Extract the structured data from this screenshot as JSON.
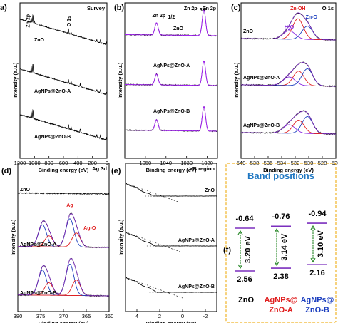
{
  "chart_data": [
    {
      "id": "a",
      "panel_label": "a)",
      "corner_label": "Survey",
      "type": "line",
      "xlabel": "Binding energy (eV)",
      "ylabel": "Intensity (a.u.)",
      "xlim": [
        1200,
        0
      ],
      "x_ticks": [
        1200,
        1000,
        800,
        600,
        400,
        200,
        0
      ],
      "annotations": [
        "Zn 2p",
        "O 1s"
      ],
      "series": [
        {
          "name": "ZnO",
          "background": [
            0.92,
            0.3
          ],
          "peaks": [
            {
              "x": 1045,
              "h": 0.12
            },
            {
              "x": 1022,
              "h": 0.2
            },
            {
              "x": 531,
              "h": 0.12
            },
            {
              "x": 1000,
              "h": 0.04
            },
            {
              "x": 495,
              "h": 0.05
            },
            {
              "x": 140,
              "h": 0.05
            },
            {
              "x": 90,
              "h": 0.07
            },
            {
              "x": 10,
              "h": 0.06
            }
          ]
        },
        {
          "name": "AgNPs@ZnO-A",
          "background": [
            0.92,
            0.3
          ],
          "peaks": [
            {
              "x": 1045,
              "h": 0.14
            },
            {
              "x": 1022,
              "h": 0.22
            },
            {
              "x": 531,
              "h": 0.1
            },
            {
              "x": 495,
              "h": 0.06
            },
            {
              "x": 368,
              "h": 0.08
            },
            {
              "x": 140,
              "h": 0.05
            },
            {
              "x": 90,
              "h": 0.07
            },
            {
              "x": 10,
              "h": 0.06
            }
          ]
        },
        {
          "name": "AgNPs@ZnO-B",
          "background": [
            0.92,
            0.3
          ],
          "peaks": [
            {
              "x": 1045,
              "h": 0.14
            },
            {
              "x": 1022,
              "h": 0.22
            },
            {
              "x": 531,
              "h": 0.1
            },
            {
              "x": 495,
              "h": 0.06
            },
            {
              "x": 368,
              "h": 0.09
            },
            {
              "x": 140,
              "h": 0.05
            },
            {
              "x": 90,
              "h": 0.07
            },
            {
              "x": 10,
              "h": 0.06
            }
          ]
        }
      ]
    },
    {
      "id": "b",
      "panel_label": "(b)",
      "type": "line",
      "xlabel": "Binding energy (eV)",
      "ylabel": "Intensity (a.u.)",
      "xlim": [
        1060,
        1015
      ],
      "x_ticks": [
        1050,
        1040,
        1030,
        1020
      ],
      "annotations": [
        "Zn 2p",
        "1/2",
        "Zn 2p",
        "3/2"
      ],
      "series": [
        {
          "name": "ZnO",
          "peaks": [
            {
              "x": 1044.6,
              "w": 0.8,
              "h": 0.45
            },
            {
              "x": 1021.6,
              "w": 0.8,
              "h": 0.95
            }
          ]
        },
        {
          "name": "AgNPs@ZnO-A",
          "peaks": [
            {
              "x": 1044.6,
              "w": 0.8,
              "h": 0.4
            },
            {
              "x": 1021.6,
              "w": 0.8,
              "h": 0.9
            }
          ]
        },
        {
          "name": "AgNPs@ZnO-B",
          "peaks": [
            {
              "x": 1044.6,
              "w": 0.8,
              "h": 0.4
            },
            {
              "x": 1021.6,
              "w": 0.8,
              "h": 0.9
            }
          ]
        }
      ]
    },
    {
      "id": "c",
      "panel_label": "(c)",
      "corner_label": "O 1s",
      "type": "line",
      "xlabel": "Binding energy (eV)",
      "ylabel": "Intensity (a.u.)",
      "xlim": [
        540,
        526
      ],
      "x_ticks": [
        540,
        538,
        536,
        534,
        532,
        530,
        528,
        526
      ],
      "annotations": [
        "Zn-OH",
        "H",
        "2",
        "O",
        "Zn-O"
      ],
      "component_colors": [
        "#8a2be2",
        "#e02020",
        "#1c3fbf"
      ],
      "series": [
        {
          "name": "ZnO",
          "components": [
            {
              "x": 532.9,
              "w": 0.9,
              "h": 0.35
            },
            {
              "x": 531.6,
              "w": 0.8,
              "h": 0.85
            },
            {
              "x": 530.2,
              "w": 0.8,
              "h": 0.55
            }
          ]
        },
        {
          "name": "AgNPs@ZnO-A",
          "components": [
            {
              "x": 532.9,
              "w": 0.9,
              "h": 0.35
            },
            {
              "x": 531.5,
              "w": 0.8,
              "h": 0.6
            },
            {
              "x": 530.2,
              "w": 0.8,
              "h": 0.7
            }
          ]
        },
        {
          "name": "AgNPs@ZnO-B",
          "components": [
            {
              "x": 532.9,
              "w": 0.9,
              "h": 0.35
            },
            {
              "x": 531.5,
              "w": 0.8,
              "h": 0.55
            },
            {
              "x": 530.2,
              "w": 0.8,
              "h": 0.7
            }
          ]
        }
      ]
    },
    {
      "id": "d",
      "panel_label": "(d)",
      "corner_label": "Ag 3d",
      "type": "line",
      "xlabel": "Binding energy (eV)",
      "ylabel": "Intensity (a.u.)",
      "xlim": [
        380,
        360
      ],
      "x_ticks": [
        380,
        375,
        370,
        365,
        360
      ],
      "annotations": [
        "Ag",
        "Ag-O"
      ],
      "component_colors": [
        "#1c3fbf",
        "#e02020"
      ],
      "series": [
        {
          "name": "ZnO",
          "components": []
        },
        {
          "name": "AgNPs@ZnO-A",
          "components": [
            {
              "x": 374.6,
              "w": 0.9,
              "h": 0.7
            },
            {
              "x": 373.2,
              "w": 0.9,
              "h": 0.35
            },
            {
              "x": 368.6,
              "w": 0.9,
              "h": 0.9
            },
            {
              "x": 367.2,
              "w": 0.9,
              "h": 0.45
            }
          ]
        },
        {
          "name": "AgNPs@ZnO-B",
          "components": [
            {
              "x": 374.6,
              "w": 0.9,
              "h": 0.8
            },
            {
              "x": 373.2,
              "w": 0.9,
              "h": 0.4
            },
            {
              "x": 368.6,
              "w": 0.9,
              "h": 1.0
            },
            {
              "x": 367.2,
              "w": 0.9,
              "h": 0.5
            }
          ]
        }
      ]
    },
    {
      "id": "e",
      "panel_label": "(e)",
      "corner_label": "VB region",
      "type": "line",
      "xlabel": "Binding energy (eV)",
      "ylabel": "Intensity (a.u.)",
      "xlim": [
        5,
        -3
      ],
      "x_ticks": [
        4,
        2,
        0,
        -2
      ],
      "x_tick_labels": [
        "4",
        "2",
        "0",
        "-2"
      ],
      "series": [
        {
          "name": "ZnO",
          "vb_edge": 2.56
        },
        {
          "name": "AgNPs@ZnO-A",
          "vb_edge": 2.38
        },
        {
          "name": "AgNPs@ZnO-B",
          "vb_edge": 2.16
        }
      ]
    },
    {
      "id": "f",
      "panel_label": "(f)",
      "type": "table",
      "title": "Band positions",
      "columns": [
        {
          "name_lines": [
            "ZnO"
          ],
          "cb": "-0.64",
          "vb": "2.56",
          "gap": "3.20 eV",
          "color": "#000000"
        },
        {
          "name_lines": [
            "AgNPs@",
            "ZnO-A"
          ],
          "cb": "-0.76",
          "vb": "2.38",
          "gap": "3.14 eV",
          "color": "#e02020"
        },
        {
          "name_lines": [
            "AgNPs@",
            "ZnO-B"
          ],
          "cb": "-0.94",
          "vb": "2.16",
          "gap": "3.10 eV",
          "color": "#1c3fbf"
        }
      ],
      "level_color": "#7b2fbe",
      "arrow_color": "#2e8b2e",
      "border_color": "#f0b429"
    }
  ]
}
